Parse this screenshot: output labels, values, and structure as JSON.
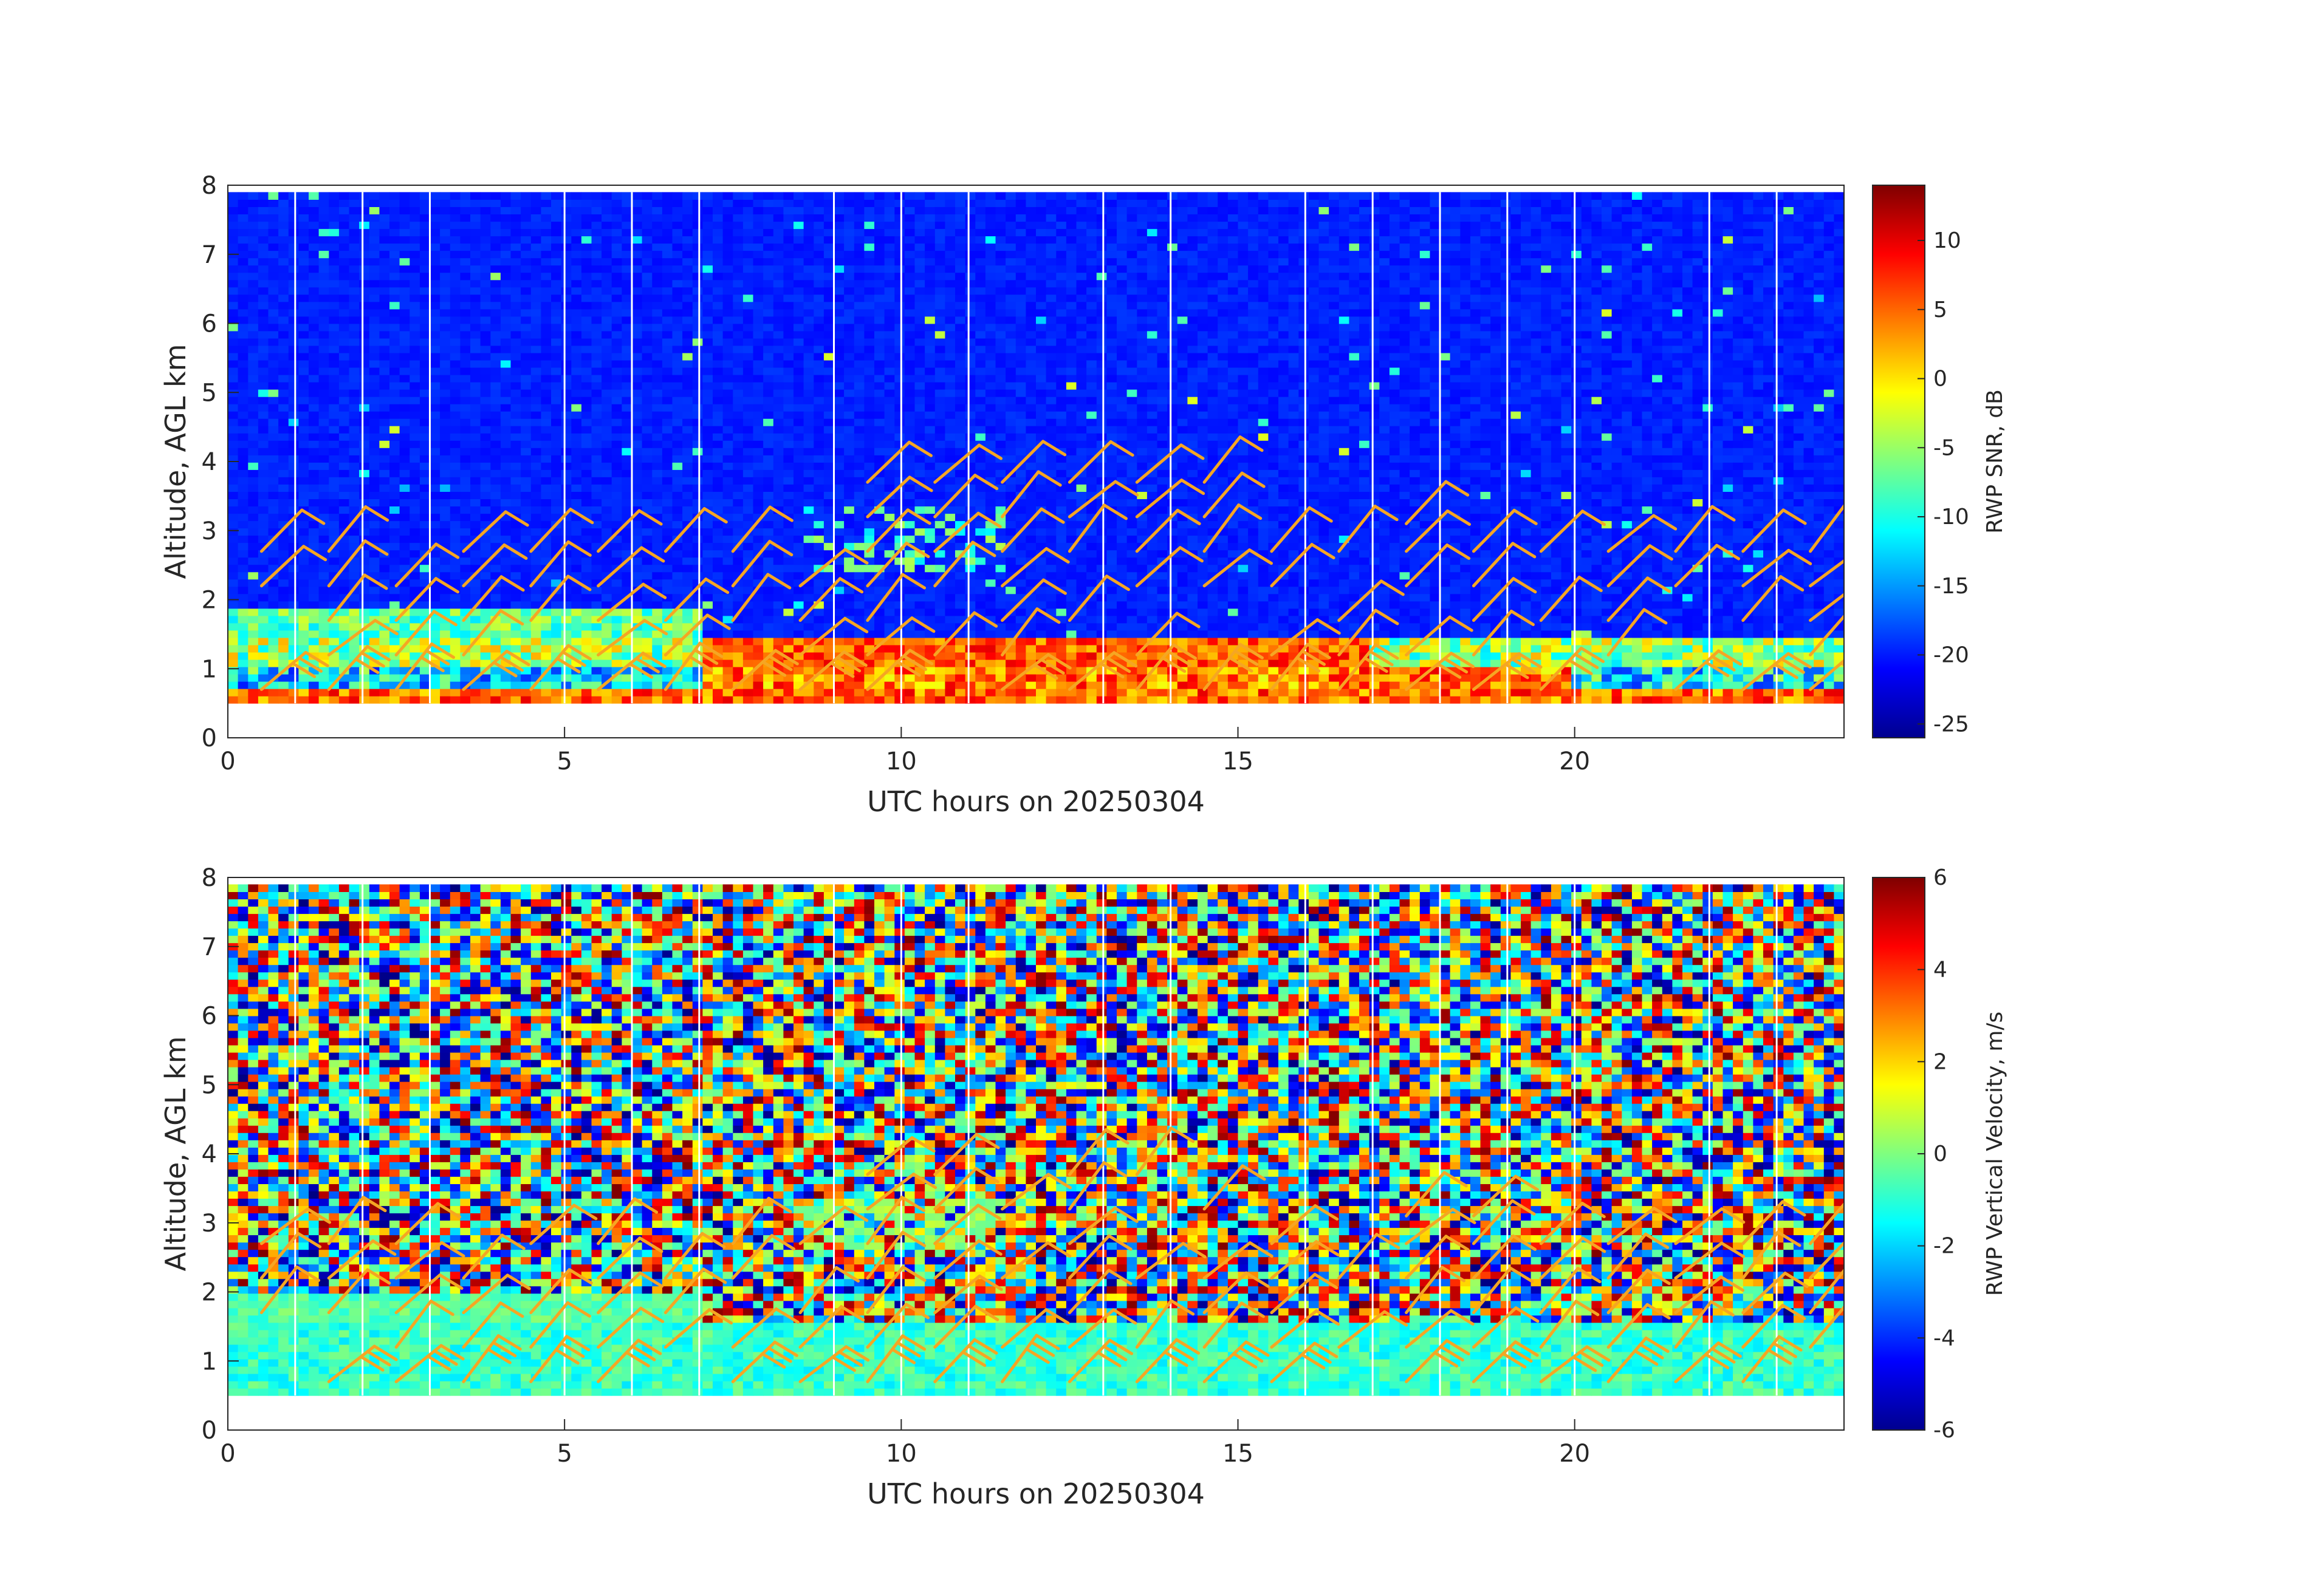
{
  "chart_data": [
    {
      "type": "heatmap",
      "name": "snr",
      "xlabel": "UTC hours on 20250304",
      "ylabel": "Altitude, AGL km",
      "xlim": [
        0,
        24
      ],
      "ylim": [
        0,
        8
      ],
      "x_ticks": [
        "0",
        "5",
        "10",
        "15",
        "20"
      ],
      "y_ticks": [
        "0",
        "1",
        "2",
        "3",
        "4",
        "5",
        "6",
        "7",
        "8"
      ],
      "colorbar": {
        "label": "RWP SNR, dB",
        "range": [
          -26,
          14
        ],
        "ticks": [
          "10",
          "5",
          "0",
          "-5",
          "-10",
          "-15",
          "-20",
          "-25"
        ],
        "colormap": "jet"
      },
      "data_range_km": [
        0.5,
        7.9
      ],
      "gap_hours": [
        1,
        2,
        3,
        5,
        6,
        7,
        9,
        10,
        11,
        13,
        14,
        16,
        17,
        18,
        19,
        20,
        22,
        23
      ],
      "wind_barb_color": "#f5a623"
    },
    {
      "type": "heatmap",
      "name": "vv",
      "xlabel": "UTC hours on 20250304",
      "ylabel": "Altitude, AGL km",
      "xlim": [
        0,
        24
      ],
      "ylim": [
        0,
        8
      ],
      "x_ticks": [
        "0",
        "5",
        "10",
        "15",
        "20"
      ],
      "y_ticks": [
        "0",
        "1",
        "2",
        "3",
        "4",
        "5",
        "6",
        "7",
        "8"
      ],
      "colorbar": {
        "label": "RWP Vertical Velocity, m/s",
        "range": [
          -6,
          6
        ],
        "ticks": [
          "6",
          "4",
          "2",
          "0",
          "-2",
          "-4",
          "-6"
        ],
        "colormap": "jet"
      },
      "data_range_km": [
        0.5,
        7.9
      ],
      "gap_hours": [
        1,
        2,
        3,
        5,
        6,
        7,
        9,
        10,
        11,
        13,
        14,
        16,
        17,
        18,
        19,
        20,
        22,
        23
      ],
      "wind_barb_color": "#f5a623"
    }
  ]
}
